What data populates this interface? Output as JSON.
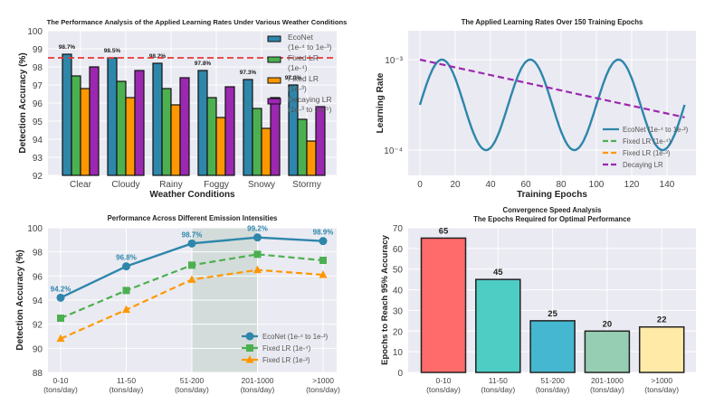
{
  "chart_data": [
    {
      "id": "weather",
      "type": "bar",
      "title": "The Performance Analysis of the Applied Learning Rates Under Various Weather Conditions",
      "xlabel": "Weather Conditions",
      "ylabel": "Detection Accuracy (%)",
      "ylim": [
        92,
        100
      ],
      "yticks": [
        92,
        93,
        94,
        95,
        96,
        97,
        98,
        99,
        100
      ],
      "grid": true,
      "categories": [
        "Clear",
        "Cloudy",
        "Rainy",
        "Foggy",
        "Snowy",
        "Stormy"
      ],
      "series": [
        {
          "name": "EcoNet\n(1e-⁴ to 1e-³)",
          "color": "#2E86AB",
          "values": [
            98.7,
            98.5,
            98.2,
            97.8,
            97.3,
            97.0
          ]
        },
        {
          "name": "Fixed LR\n(1e-⁴)",
          "color": "#4CB050",
          "values": [
            97.5,
            97.2,
            96.8,
            96.3,
            95.7,
            95.1
          ]
        },
        {
          "name": "Fixed LR\n(1e-³)",
          "color": "#FF9800",
          "values": [
            96.8,
            96.3,
            95.9,
            95.2,
            94.6,
            93.9
          ]
        },
        {
          "name": "Decaying LR\n(1e-³ to 1e-⁵)",
          "color": "#9C27B0",
          "values": [
            98.0,
            97.8,
            97.4,
            96.9,
            96.3,
            95.8
          ]
        }
      ],
      "data_labels": [
        "98.7%",
        "98.5%",
        "98.2%",
        "97.8%",
        "97.3%",
        "97.0%"
      ],
      "reference_line": {
        "value": 98.5,
        "color": "#E53935",
        "style": "dashed"
      },
      "legend_position": "top-right"
    },
    {
      "id": "lr",
      "type": "line",
      "title": "The Applied Learning Rates Over 150 Training Epochs",
      "xlabel": "Training Epochs",
      "ylabel": "Learning Rate",
      "xlim": [
        -7.5,
        156
      ],
      "xticks": [
        0,
        20,
        40,
        60,
        80,
        100,
        120,
        140
      ],
      "yscale": "log",
      "ylim": [
        5e-05,
        0.002
      ],
      "yticks": [
        {
          "value": 0.001,
          "label": "10⁻³"
        },
        {
          "value": 0.0001,
          "label": "10⁻⁴"
        }
      ],
      "grid": true,
      "series": [
        {
          "name": "EcoNet (1e-⁴ to 1e-³)",
          "color": "#2E86AB",
          "style": "solid",
          "kind": "cyclic",
          "min": 0.0001,
          "max": 0.001,
          "period": 50,
          "peak_epoch": 12.5,
          "epochs": [
            0,
            150
          ]
        },
        {
          "name": "Fixed LR (1e-⁴)",
          "color": "#4CB050",
          "style": "dashed",
          "kind": "legend-only"
        },
        {
          "name": "Fixed LR (1e-³)",
          "color": "#FF9800",
          "style": "dashed",
          "kind": "legend-only"
        },
        {
          "name": "Decaying LR",
          "color": "#9C27B0",
          "style": "dashed",
          "kind": "exp-decay",
          "start": 0.001,
          "end": 0.00023,
          "epochs": [
            0,
            150
          ]
        }
      ],
      "legend_position": "lower-right"
    },
    {
      "id": "emission",
      "type": "line",
      "title": "Performance Across Different Emission Intensities",
      "xlabel": "",
      "ylabel": "Detection Accuracy (%)",
      "ylim": [
        88,
        100
      ],
      "yticks": [
        88,
        90,
        92,
        94,
        96,
        98,
        100
      ],
      "grid": true,
      "categories": [
        "0-10\n(tons/day)",
        "11-50\n(tons/day)",
        "51-200\n(tons/day)",
        "201-1000\n(tons/day)",
        ">1000\n(tons/day)"
      ],
      "series": [
        {
          "name": "EcoNet (1e-⁴ to 1e-³)",
          "color": "#2E86AB",
          "style": "solid",
          "marker": "circle",
          "values": [
            94.2,
            96.8,
            98.7,
            99.2,
            98.9
          ]
        },
        {
          "name": "Fixed LR (1e-⁴)",
          "color": "#4CB050",
          "style": "dashed",
          "marker": "square",
          "values": [
            92.5,
            94.8,
            96.9,
            97.8,
            97.3
          ]
        },
        {
          "name": "Fixed LR (1e-³)",
          "color": "#FF9800",
          "style": "dashed",
          "marker": "triangle",
          "values": [
            90.8,
            93.2,
            95.7,
            96.5,
            96.1
          ]
        }
      ],
      "data_labels": [
        "94.2%",
        "96.8%",
        "98.7%",
        "99.2%",
        "98.9%"
      ],
      "highlight_range": {
        "from_category": 2,
        "to_category": 3,
        "color": "#2E7D32"
      },
      "legend_position": "lower-right"
    },
    {
      "id": "convergence",
      "type": "bar",
      "title": "Convergence Speed Analysis\nThe Epochs Required for Optimal Performance",
      "xlabel": "",
      "ylabel": "Epochs to Reach 95% Accuracy",
      "ylim": [
        0,
        70
      ],
      "yticks": [
        0,
        10,
        20,
        30,
        40,
        50,
        60,
        70
      ],
      "grid": true,
      "categories": [
        "0-10\n(tons/day)",
        "11-50\n(tons/day)",
        "51-200\n(tons/day)",
        "201-1000\n(tons/day)",
        ">1000\n(tons/day)"
      ],
      "values": [
        65,
        45,
        25,
        20,
        22
      ],
      "colors": [
        "#FF6B6B",
        "#4ECDC4",
        "#45B7D1",
        "#96CEB4",
        "#FFEAA7"
      ]
    }
  ]
}
